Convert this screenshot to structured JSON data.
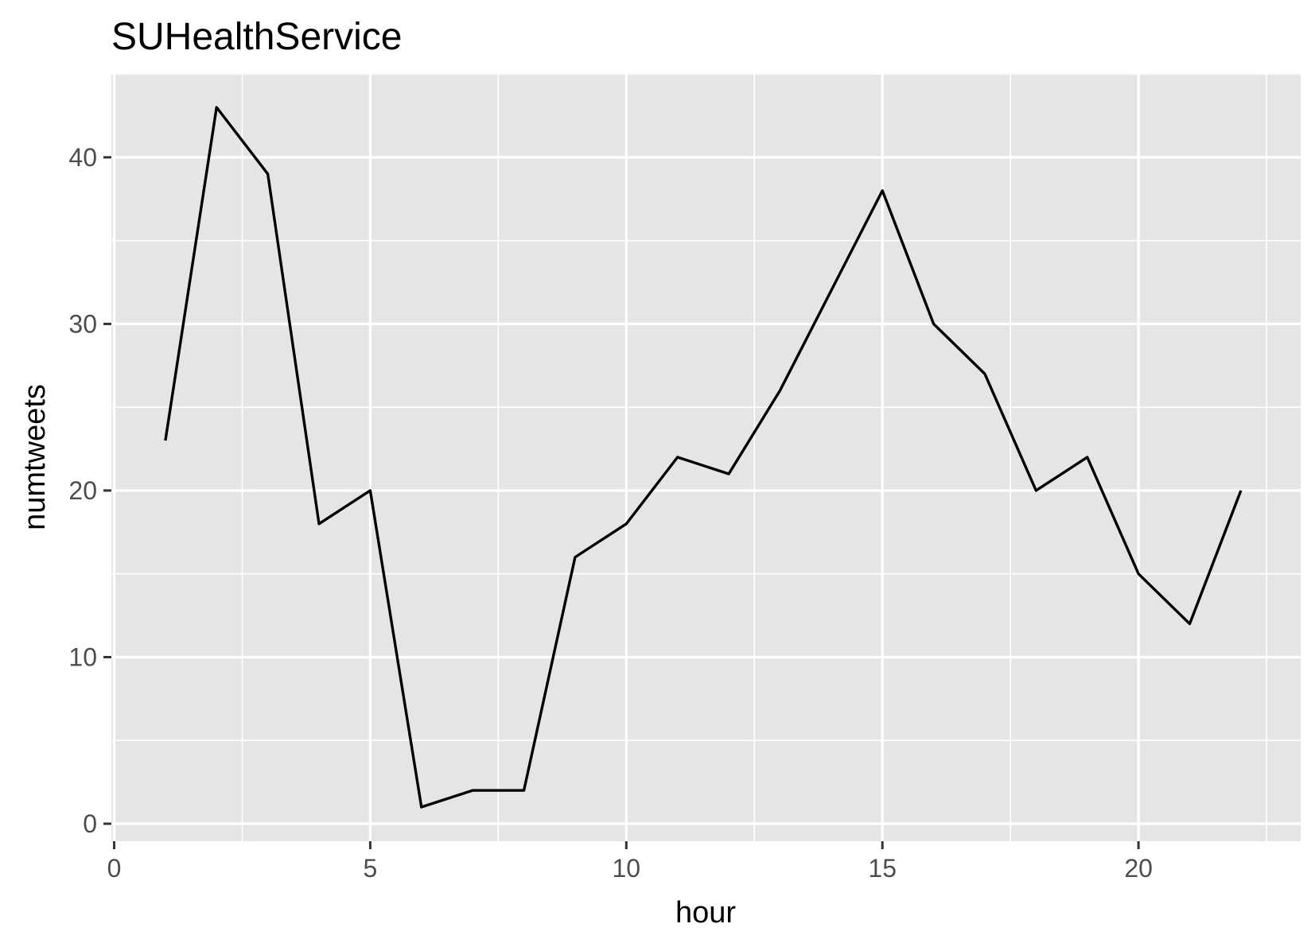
{
  "chart_data": {
    "type": "line",
    "title": "SUHealthService",
    "xlabel": "hour",
    "ylabel": "numtweets",
    "xlim": [
      0,
      23
    ],
    "ylim": [
      0,
      43
    ],
    "x_ticks": [
      0,
      5,
      10,
      15,
      20
    ],
    "x_tick_labels": [
      "0",
      "5",
      "10",
      "15",
      "20"
    ],
    "y_ticks": [
      0,
      10,
      20,
      30,
      40
    ],
    "y_tick_labels": [
      "0",
      "10",
      "20",
      "30",
      "40"
    ],
    "grid": true,
    "legend": "none",
    "series": [
      {
        "color": "#000000",
        "x": [
          1,
          2,
          3,
          4,
          5,
          6,
          7,
          8,
          9,
          10,
          11,
          12,
          13,
          14,
          15,
          16,
          17,
          18,
          19,
          20,
          21,
          22
        ],
        "values": [
          23,
          43,
          39,
          18,
          20,
          1,
          2,
          2,
          16,
          18,
          22,
          21,
          26,
          32,
          38,
          30,
          27,
          20,
          22,
          15,
          12,
          20
        ]
      }
    ]
  },
  "colors": {
    "panel_background": "#e5e5e5",
    "grid_major": "#ffffff",
    "grid_minor": "#f2f2f2",
    "tick_label": "#4d4d4d",
    "axis_title": "#000000"
  }
}
